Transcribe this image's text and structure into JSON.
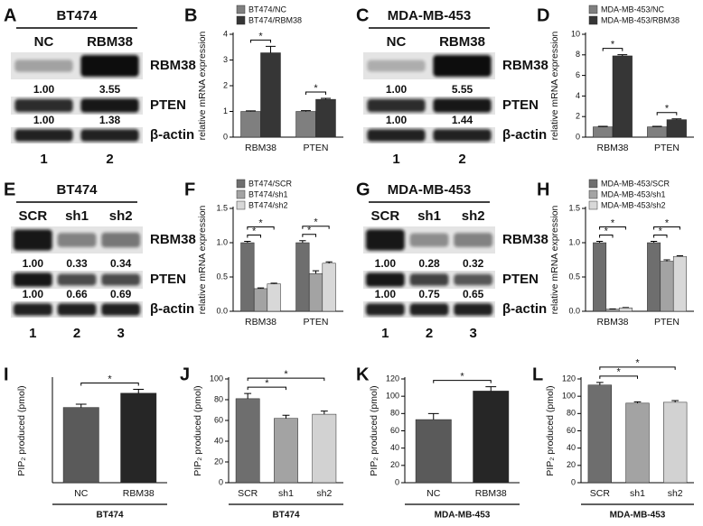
{
  "blots": [
    {
      "letter": "A",
      "title": "BT474",
      "lanes": [
        "NC",
        "RBM38"
      ],
      "rows": [
        {
          "label": "RBM38",
          "quant": [
            "1.00",
            "3.55"
          ]
        },
        {
          "label": "PTEN",
          "quant": [
            "1.00",
            "1.38"
          ]
        },
        {
          "label": "β-actin"
        }
      ],
      "numbers": [
        "1",
        "2"
      ]
    },
    {
      "letter": "C",
      "title": "MDA-MB-453",
      "lanes": [
        "NC",
        "RBM38"
      ],
      "rows": [
        {
          "label": "RBM38",
          "quant": [
            "1.00",
            "5.55"
          ]
        },
        {
          "label": "PTEN",
          "quant": [
            "1.00",
            "1.44"
          ]
        },
        {
          "label": "β-actin"
        }
      ],
      "numbers": [
        "1",
        "2"
      ]
    },
    {
      "letter": "E",
      "title": "BT474",
      "lanes": [
        "SCR",
        "sh1",
        "sh2"
      ],
      "rows": [
        {
          "label": "RBM38",
          "quant": [
            "1.00",
            "0.33",
            "0.34"
          ]
        },
        {
          "label": "PTEN",
          "quant": [
            "1.00",
            "0.66",
            "0.69"
          ]
        },
        {
          "label": "β-actin"
        }
      ],
      "numbers": [
        "1",
        "2",
        "3"
      ]
    },
    {
      "letter": "G",
      "title": "MDA-MB-453",
      "lanes": [
        "SCR",
        "sh1",
        "sh2"
      ],
      "rows": [
        {
          "label": "RBM38",
          "quant": [
            "1.00",
            "0.28",
            "0.32"
          ]
        },
        {
          "label": "PTEN",
          "quant": [
            "1.00",
            "0.75",
            "0.65"
          ]
        },
        {
          "label": "β-actin"
        }
      ],
      "numbers": [
        "1",
        "2",
        "3"
      ]
    }
  ],
  "chart_data": [
    {
      "type": "bar",
      "letter": "B",
      "y_label": "relative mRNA expression",
      "categories": [
        "RBM38",
        "PTEN"
      ],
      "series": [
        {
          "name": "BT474/NC",
          "color": "#7f7f7f",
          "values": [
            1.0,
            1.0
          ],
          "errors": [
            0.02,
            0.03
          ]
        },
        {
          "name": "BT474/RBM38",
          "color": "#363636",
          "values": [
            3.28,
            1.47
          ],
          "errors": [
            0.25,
            0.04
          ]
        }
      ],
      "ylim": [
        0,
        4
      ],
      "yticks": [
        0,
        1,
        2,
        3,
        4
      ],
      "comparisons": [
        {
          "category": 0,
          "series": [
            0,
            1
          ],
          "label": "*"
        },
        {
          "category": 1,
          "series": [
            0,
            1
          ],
          "label": "*"
        }
      ]
    },
    {
      "type": "bar",
      "letter": "D",
      "y_label": "relative mRNA expression",
      "categories": [
        "RBM38",
        "PTEN"
      ],
      "series": [
        {
          "name": "MDA-MB-453/NC",
          "color": "#7f7f7f",
          "values": [
            1.0,
            1.0
          ],
          "errors": [
            0.05,
            0.05
          ]
        },
        {
          "name": "MDA-MB-453/RBM38",
          "color": "#363636",
          "values": [
            7.9,
            1.7
          ],
          "errors": [
            0.12,
            0.08
          ]
        }
      ],
      "ylim": [
        0,
        10
      ],
      "yticks": [
        0,
        2,
        4,
        6,
        8,
        10
      ],
      "comparisons": [
        {
          "category": 0,
          "series": [
            0,
            1
          ],
          "label": "*"
        },
        {
          "category": 1,
          "series": [
            0,
            1
          ],
          "label": "*"
        }
      ]
    },
    {
      "type": "bar",
      "letter": "F",
      "y_label": "relative mRNA expression",
      "categories": [
        "RBM38",
        "PTEN"
      ],
      "series": [
        {
          "name": "BT474/SCR",
          "color": "#6e6e6e",
          "values": [
            1.0,
            1.0
          ],
          "errors": [
            0.02,
            0.03
          ]
        },
        {
          "name": "BT474/sh1",
          "color": "#a3a3a3",
          "values": [
            0.33,
            0.55
          ],
          "errors": [
            0.01,
            0.04
          ]
        },
        {
          "name": "BT474/sh2",
          "color": "#d8d8d8",
          "values": [
            0.4,
            0.7
          ],
          "errors": [
            0.01,
            0.02
          ]
        }
      ],
      "ylim": [
        0,
        1.5
      ],
      "yticks": [
        {
          "value": 0,
          "label": "0.0"
        },
        {
          "value": 0.5,
          "label": "0.5"
        },
        {
          "value": 1,
          "label": "1.0"
        },
        {
          "value": 1.5,
          "label": "1.5"
        }
      ],
      "comparisons": [
        {
          "category": 0,
          "series": [
            0,
            1
          ],
          "label": "*"
        },
        {
          "category": 0,
          "series": [
            0,
            2
          ],
          "label": "*"
        },
        {
          "category": 1,
          "series": [
            0,
            1
          ],
          "label": "*"
        },
        {
          "category": 1,
          "series": [
            0,
            2
          ],
          "label": "*"
        }
      ]
    },
    {
      "type": "bar",
      "letter": "H",
      "y_label": "relative mRNA expression",
      "categories": [
        "RBM38",
        "PTEN"
      ],
      "series": [
        {
          "name": "MDA-MB-453/SCR",
          "color": "#6e6e6e",
          "values": [
            1.0,
            1.0
          ],
          "errors": [
            0.02,
            0.02
          ]
        },
        {
          "name": "MDA-MB-453/sh1",
          "color": "#a3a3a3",
          "values": [
            0.03,
            0.73
          ],
          "errors": [
            0.005,
            0.02
          ]
        },
        {
          "name": "MDA-MB-453/sh2",
          "color": "#d8d8d8",
          "values": [
            0.05,
            0.8
          ],
          "errors": [
            0.005,
            0.01
          ]
        }
      ],
      "ylim": [
        0,
        1.5
      ],
      "yticks": [
        {
          "value": 0,
          "label": "0.0"
        },
        {
          "value": 0.5,
          "label": "0.5"
        },
        {
          "value": 1,
          "label": "1.0"
        },
        {
          "value": 1.5,
          "label": "1.5"
        }
      ],
      "comparisons": [
        {
          "category": 0,
          "series": [
            0,
            1
          ],
          "label": "*"
        },
        {
          "category": 0,
          "series": [
            0,
            2
          ],
          "label": "*"
        },
        {
          "category": 1,
          "series": [
            0,
            1
          ],
          "label": "*"
        },
        {
          "category": 1,
          "series": [
            0,
            2
          ],
          "label": "*"
        }
      ]
    },
    {
      "type": "bar",
      "letter": "I",
      "y_label": "PIP₂ produced (pmol)",
      "categories": [
        "NC",
        "RBM38"
      ],
      "values": [
        58,
        69
      ],
      "errors": [
        2.5,
        3
      ],
      "colors": [
        "#5a5a5a",
        "#262626"
      ],
      "ylim": [
        0,
        80
      ],
      "group_label": "BT474",
      "comparisons": [
        {
          "bars": [
            0,
            1
          ],
          "label": "*"
        }
      ]
    },
    {
      "type": "bar",
      "letter": "J",
      "y_label": "PIP₂ produced (pmol)",
      "categories": [
        "SCR",
        "sh1",
        "sh2"
      ],
      "values": [
        81,
        62,
        66
      ],
      "errors": [
        5,
        3,
        3
      ],
      "colors": [
        "#6e6e6e",
        "#a3a3a3",
        "#d2d2d2"
      ],
      "ylim": [
        0,
        100
      ],
      "yticks": [
        0,
        20,
        40,
        60,
        80,
        100
      ],
      "group_label": "BT474",
      "comparisons": [
        {
          "bars": [
            0,
            1
          ],
          "label": "*"
        },
        {
          "bars": [
            0,
            2
          ],
          "label": "*"
        }
      ]
    },
    {
      "type": "bar",
      "letter": "K",
      "y_label": "PIP₂ produced (pmol)",
      "categories": [
        "NC",
        "RBM38"
      ],
      "values": [
        73,
        106
      ],
      "errors": [
        7,
        5
      ],
      "colors": [
        "#5a5a5a",
        "#262626"
      ],
      "ylim": [
        0,
        120
      ],
      "yticks": [
        0,
        20,
        40,
        60,
        80,
        100,
        120
      ],
      "group_label": "MDA-MB-453",
      "comparisons": [
        {
          "bars": [
            0,
            1
          ],
          "label": "*"
        }
      ]
    },
    {
      "type": "bar",
      "letter": "L",
      "y_label": "PIP₂ produced (pmol)",
      "categories": [
        "SCR",
        "sh1",
        "sh2"
      ],
      "values": [
        113,
        92,
        93
      ],
      "errors": [
        3,
        1.5,
        2
      ],
      "colors": [
        "#6e6e6e",
        "#a3a3a3",
        "#d2d2d2"
      ],
      "ylim": [
        0,
        120
      ],
      "yticks": [
        0,
        20,
        40,
        60,
        80,
        100,
        120
      ],
      "group_label": "MDA-MB-453",
      "comparisons": [
        {
          "bars": [
            0,
            1
          ],
          "label": "*"
        },
        {
          "bars": [
            0,
            2
          ],
          "label": "*"
        }
      ]
    }
  ]
}
